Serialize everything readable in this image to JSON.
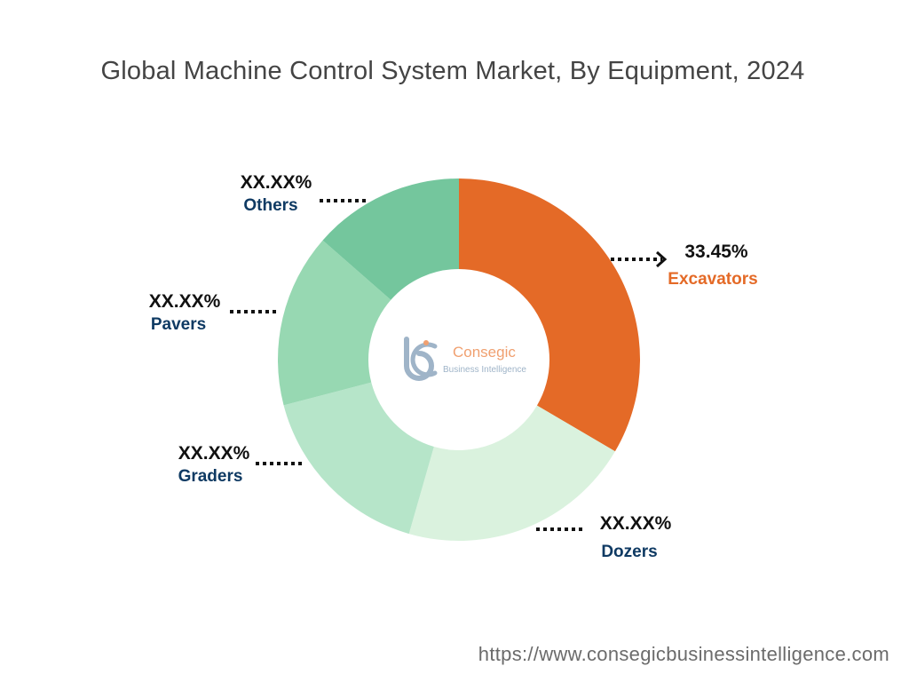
{
  "title": "Global Machine Control System Market, By Equipment, 2024",
  "footer_url": "https://www.consegicbusinessintelligence.com",
  "logo": {
    "name": "Consegic",
    "tagline": "Business Intelligence"
  },
  "chart_data": {
    "type": "pie",
    "style": "donut",
    "title": "Global Machine Control System Market, By Equipment, 2024",
    "categories": [
      "Excavators",
      "Dozers",
      "Graders",
      "Pavers",
      "Others"
    ],
    "values": [
      33.45,
      21.0,
      16.5,
      15.5,
      13.55
    ],
    "data_labels": [
      "33.45%",
      "XX.XX%",
      "XX.XX%",
      "XX.XX%",
      "XX.XX%"
    ],
    "colors": [
      "#E46A27",
      "#DAF2DE",
      "#B6E5C9",
      "#97D8B2",
      "#74C69D"
    ],
    "label_colors": [
      "#E46A27",
      "#0F3A63",
      "#0F3A63",
      "#0F3A63",
      "#0F3A63"
    ],
    "start_angle_deg": 0,
    "direction": "clockwise",
    "legend": "none"
  }
}
